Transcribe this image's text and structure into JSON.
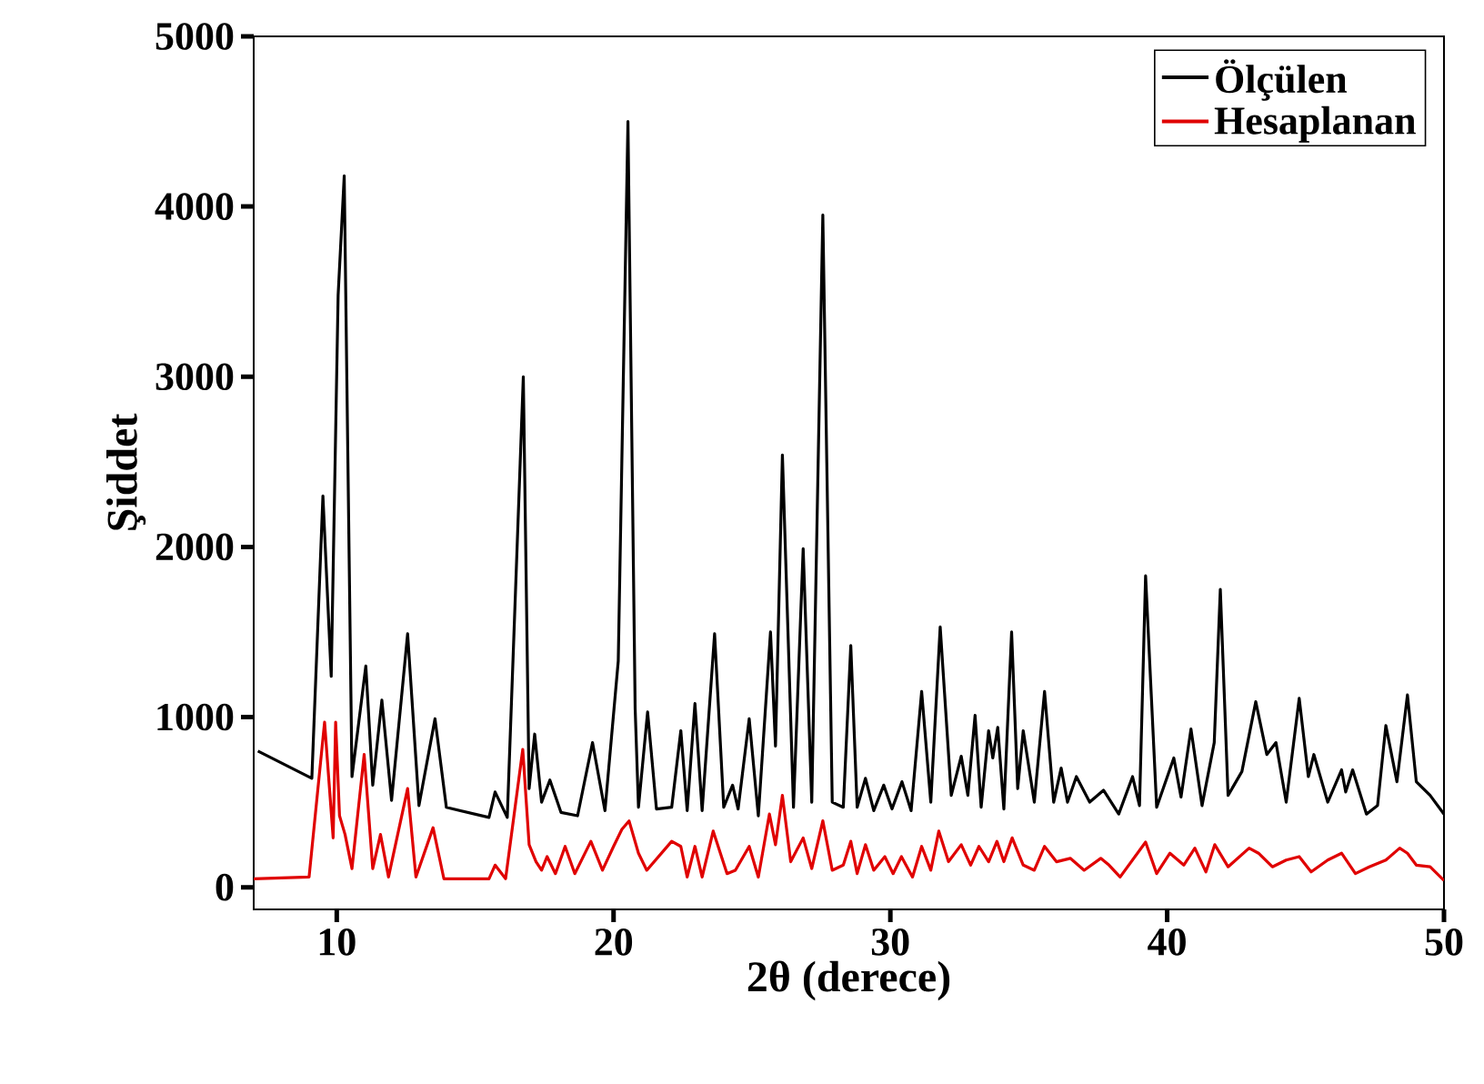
{
  "chart_data": {
    "type": "line",
    "xlabel": "2θ (derece)",
    "ylabel": "Şiddet",
    "xlim": [
      7,
      50
    ],
    "ylim": [
      -130,
      5000
    ],
    "xticks": [
      10,
      20,
      30,
      40,
      50
    ],
    "yticks": [
      0,
      1000,
      2000,
      3000,
      4000,
      5000
    ],
    "legend": "top right",
    "grid": false,
    "series": [
      {
        "name": "Ölçülen",
        "color": "#000000",
        "x": [
          7.15,
          9.1,
          9.5,
          9.8,
          10.05,
          10.27,
          10.55,
          11.05,
          11.3,
          11.63,
          11.98,
          12.56,
          12.97,
          13.55,
          13.96,
          15.5,
          15.72,
          16.16,
          16.74,
          16.95,
          17.15,
          17.4,
          17.7,
          18.1,
          18.7,
          19.24,
          19.69,
          20.17,
          20.52,
          20.78,
          20.9,
          21.23,
          21.55,
          22.1,
          22.43,
          22.66,
          22.94,
          23.2,
          23.65,
          23.98,
          24.3,
          24.5,
          24.9,
          25.23,
          25.67,
          25.85,
          26.1,
          26.5,
          26.85,
          27.16,
          27.56,
          27.9,
          28.3,
          28.57,
          28.8,
          29.1,
          29.4,
          29.76,
          30.06,
          30.42,
          30.75,
          31.13,
          31.46,
          31.8,
          32.2,
          32.56,
          32.8,
          33.06,
          33.28,
          33.55,
          33.7,
          33.88,
          34.1,
          34.38,
          34.6,
          34.8,
          35.2,
          35.57,
          35.9,
          36.17,
          36.4,
          36.72,
          37.2,
          37.7,
          38.25,
          38.75,
          39.0,
          39.22,
          39.62,
          40.24,
          40.5,
          40.86,
          41.26,
          41.7,
          41.92,
          42.2,
          42.7,
          43.2,
          43.6,
          43.93,
          44.3,
          44.77,
          45.1,
          45.3,
          45.8,
          46.3,
          46.45,
          46.7,
          47.2,
          47.6,
          47.9,
          48.3,
          48.68,
          49.0,
          49.5,
          50.0
        ],
        "values": [
          800,
          640,
          2300,
          1240,
          3480,
          4180,
          650,
          1300,
          600,
          1100,
          510,
          1490,
          480,
          990,
          470,
          410,
          560,
          410,
          3000,
          580,
          900,
          500,
          630,
          440,
          420,
          850,
          450,
          1330,
          4500,
          1050,
          470,
          1030,
          460,
          470,
          920,
          450,
          1080,
          450,
          1490,
          470,
          600,
          460,
          990,
          420,
          1500,
          830,
          2540,
          470,
          1990,
          500,
          3950,
          500,
          470,
          1420,
          470,
          640,
          450,
          600,
          460,
          620,
          450,
          1150,
          500,
          1530,
          540,
          770,
          540,
          1010,
          470,
          920,
          760,
          940,
          460,
          1500,
          580,
          920,
          500,
          1150,
          500,
          700,
          500,
          650,
          500,
          570,
          430,
          650,
          480,
          1830,
          470,
          760,
          530,
          930,
          480,
          850,
          1750,
          540,
          680,
          1090,
          780,
          850,
          500,
          1110,
          650,
          780,
          500,
          690,
          560,
          690,
          430,
          480,
          950,
          620,
          1130,
          620,
          540,
          430
        ]
      },
      {
        "name": "Hesaplanan",
        "color": "#e00000",
        "x": [
          7.0,
          9.0,
          9.56,
          9.87,
          9.96,
          10.1,
          10.3,
          10.55,
          10.99,
          11.3,
          11.58,
          11.87,
          12.56,
          12.86,
          13.48,
          13.87,
          15.5,
          15.72,
          16.1,
          16.72,
          16.95,
          17.2,
          17.4,
          17.6,
          17.9,
          18.25,
          18.6,
          19.18,
          19.6,
          20.0,
          20.3,
          20.56,
          20.9,
          21.2,
          22.1,
          22.43,
          22.66,
          22.94,
          23.2,
          23.6,
          24.1,
          24.4,
          24.9,
          25.23,
          25.63,
          25.85,
          26.1,
          26.4,
          26.85,
          27.16,
          27.56,
          27.9,
          28.3,
          28.57,
          28.8,
          29.1,
          29.4,
          29.8,
          30.1,
          30.4,
          30.8,
          31.13,
          31.46,
          31.75,
          32.1,
          32.56,
          32.9,
          33.2,
          33.55,
          33.85,
          34.1,
          34.4,
          34.8,
          35.2,
          35.57,
          36.0,
          36.5,
          37.0,
          37.6,
          37.9,
          38.3,
          39.22,
          39.62,
          40.1,
          40.6,
          41.0,
          41.4,
          41.72,
          42.2,
          42.96,
          43.3,
          43.8,
          44.3,
          44.77,
          45.2,
          45.8,
          46.3,
          46.8,
          47.3,
          47.9,
          48.4,
          48.68,
          49.0,
          49.5,
          50.0
        ],
        "values": [
          50,
          60,
          970,
          290,
          970,
          420,
          310,
          110,
          780,
          110,
          310,
          60,
          580,
          60,
          350,
          50,
          50,
          130,
          50,
          810,
          250,
          150,
          100,
          180,
          80,
          240,
          80,
          270,
          100,
          240,
          340,
          390,
          200,
          100,
          270,
          240,
          60,
          240,
          60,
          330,
          80,
          100,
          240,
          60,
          430,
          250,
          540,
          150,
          290,
          110,
          390,
          100,
          130,
          270,
          80,
          250,
          100,
          180,
          80,
          180,
          60,
          240,
          100,
          330,
          150,
          250,
          130,
          240,
          150,
          270,
          150,
          290,
          130,
          100,
          240,
          150,
          170,
          100,
          170,
          130,
          60,
          265,
          80,
          200,
          130,
          230,
          90,
          250,
          120,
          230,
          200,
          120,
          160,
          180,
          90,
          160,
          200,
          80,
          120,
          160,
          230,
          200,
          130,
          120,
          40
        ]
      }
    ]
  }
}
